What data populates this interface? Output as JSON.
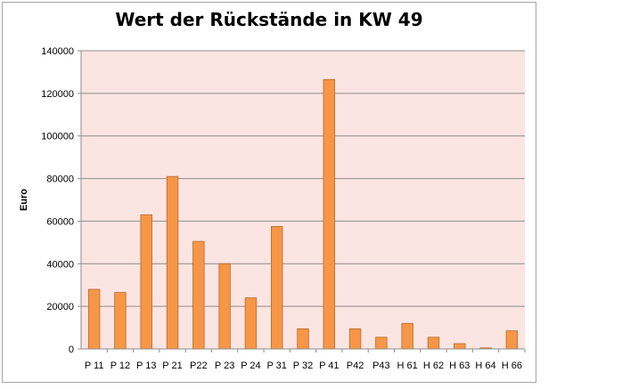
{
  "colors": {
    "plot_background": "#fbe5e2",
    "bar_fill": "#f79646",
    "bar_stroke": "#b66a2d",
    "gridline": "#8c8c8c"
  },
  "chart_data": {
    "type": "bar",
    "title": "Wert der Rückstände in KW 49",
    "xlabel": "",
    "ylabel": "Euro",
    "ylim": [
      0,
      140000
    ],
    "yticks": [
      0,
      20000,
      40000,
      60000,
      80000,
      100000,
      120000,
      140000
    ],
    "grid": true,
    "legend": "none",
    "categories": [
      "P 11",
      "P 12",
      "P 13",
      "P 21",
      "P22",
      "P 23",
      "P 24",
      "P 31",
      "P 32",
      "P 41",
      "P42",
      "P43",
      "H 61",
      "H 62",
      "H 63",
      "H 64",
      "H 66"
    ],
    "values": [
      28000,
      26500,
      63000,
      81000,
      50500,
      40000,
      24000,
      57500,
      9500,
      126500,
      9500,
      5500,
      12000,
      5500,
      2500,
      500,
      8500
    ]
  }
}
